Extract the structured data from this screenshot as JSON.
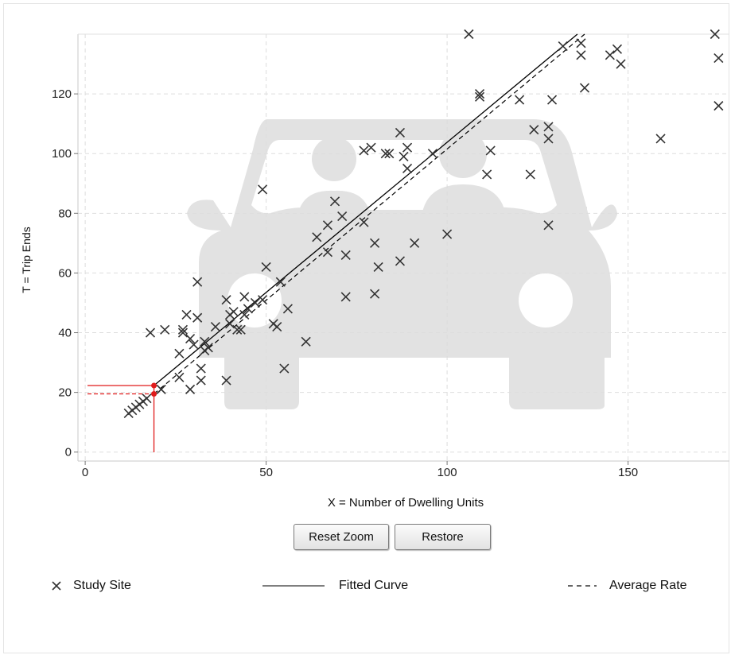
{
  "buttons": {
    "reset_zoom": "Reset Zoom",
    "restore": "Restore"
  },
  "legend": [
    {
      "label": "Study Site",
      "marker": "x-icon"
    },
    {
      "label": "Fitted Curve",
      "marker": "solid-line-icon"
    },
    {
      "label": "Average Rate",
      "marker": "dashed-line-icon"
    }
  ],
  "chart_data": {
    "type": "scatter",
    "title": "",
    "xlabel": "X = Number of Dwelling Units",
    "ylabel": "T = Trip Ends",
    "xlim": [
      -2,
      178
    ],
    "ylim": [
      -3,
      140
    ],
    "xticks": [
      0,
      50,
      100,
      150
    ],
    "yticks": [
      0,
      20,
      40,
      60,
      80,
      100,
      120
    ],
    "grid": true,
    "legend_position": "bottom",
    "background_icon": "car-icon",
    "colors": {
      "points": "#333333",
      "lines": "#000000",
      "highlight": "#e01b1b",
      "grid": "#dddddd",
      "watermark": "#e2e2e2"
    },
    "study_sites": [
      [
        12,
        13
      ],
      [
        13,
        14
      ],
      [
        14,
        15
      ],
      [
        15,
        16
      ],
      [
        16,
        17
      ],
      [
        17,
        18
      ],
      [
        18,
        40
      ],
      [
        21,
        21
      ],
      [
        22,
        41
      ],
      [
        26,
        25
      ],
      [
        26,
        33
      ],
      [
        27,
        40
      ],
      [
        27,
        41
      ],
      [
        28,
        46
      ],
      [
        29,
        38
      ],
      [
        29,
        21
      ],
      [
        30,
        36
      ],
      [
        31,
        57
      ],
      [
        31,
        45
      ],
      [
        32,
        24
      ],
      [
        32,
        28
      ],
      [
        33,
        34
      ],
      [
        33,
        37
      ],
      [
        34,
        35
      ],
      [
        36,
        42
      ],
      [
        39,
        24
      ],
      [
        39,
        51
      ],
      [
        40,
        46
      ],
      [
        40,
        43
      ],
      [
        41,
        47
      ],
      [
        42,
        41
      ],
      [
        43,
        41
      ],
      [
        44,
        52
      ],
      [
        44,
        46
      ],
      [
        45,
        48
      ],
      [
        47,
        50
      ],
      [
        49,
        51
      ],
      [
        50,
        62
      ],
      [
        49,
        88
      ],
      [
        52,
        43
      ],
      [
        53,
        42
      ],
      [
        54,
        57
      ],
      [
        55,
        28
      ],
      [
        56,
        48
      ],
      [
        61,
        37
      ],
      [
        64,
        72
      ],
      [
        67,
        67
      ],
      [
        67,
        76
      ],
      [
        69,
        84
      ],
      [
        71,
        79
      ],
      [
        72,
        66
      ],
      [
        72,
        52
      ],
      [
        77,
        77
      ],
      [
        77,
        101
      ],
      [
        79,
        102
      ],
      [
        80,
        70
      ],
      [
        80,
        53
      ],
      [
        81,
        62
      ],
      [
        83,
        100
      ],
      [
        84,
        100
      ],
      [
        87,
        107
      ],
      [
        87,
        64
      ],
      [
        88,
        99
      ],
      [
        89,
        102
      ],
      [
        89,
        95
      ],
      [
        91,
        70
      ],
      [
        96,
        100
      ],
      [
        100,
        73
      ],
      [
        106,
        140
      ],
      [
        109,
        119
      ],
      [
        109,
        120
      ],
      [
        111,
        93
      ],
      [
        112,
        101
      ],
      [
        120,
        118
      ],
      [
        123,
        93
      ],
      [
        124,
        108
      ],
      [
        128,
        109
      ],
      [
        128,
        105
      ],
      [
        128,
        76
      ],
      [
        129,
        118
      ],
      [
        132,
        136
      ],
      [
        137,
        137
      ],
      [
        137,
        133
      ],
      [
        138,
        122
      ],
      [
        145,
        133
      ],
      [
        147,
        135
      ],
      [
        148,
        130
      ],
      [
        159,
        105
      ],
      [
        174,
        140
      ],
      [
        175,
        132
      ],
      [
        175,
        116
      ]
    ],
    "fitted_curve": [
      [
        19,
        22.3
      ],
      [
        136,
        140
      ]
    ],
    "average_rate": [
      [
        19,
        19.5
      ],
      [
        138,
        140
      ]
    ],
    "highlight": {
      "x": 19,
      "fitted_y": 22.3,
      "average_y": 19.5
    }
  }
}
